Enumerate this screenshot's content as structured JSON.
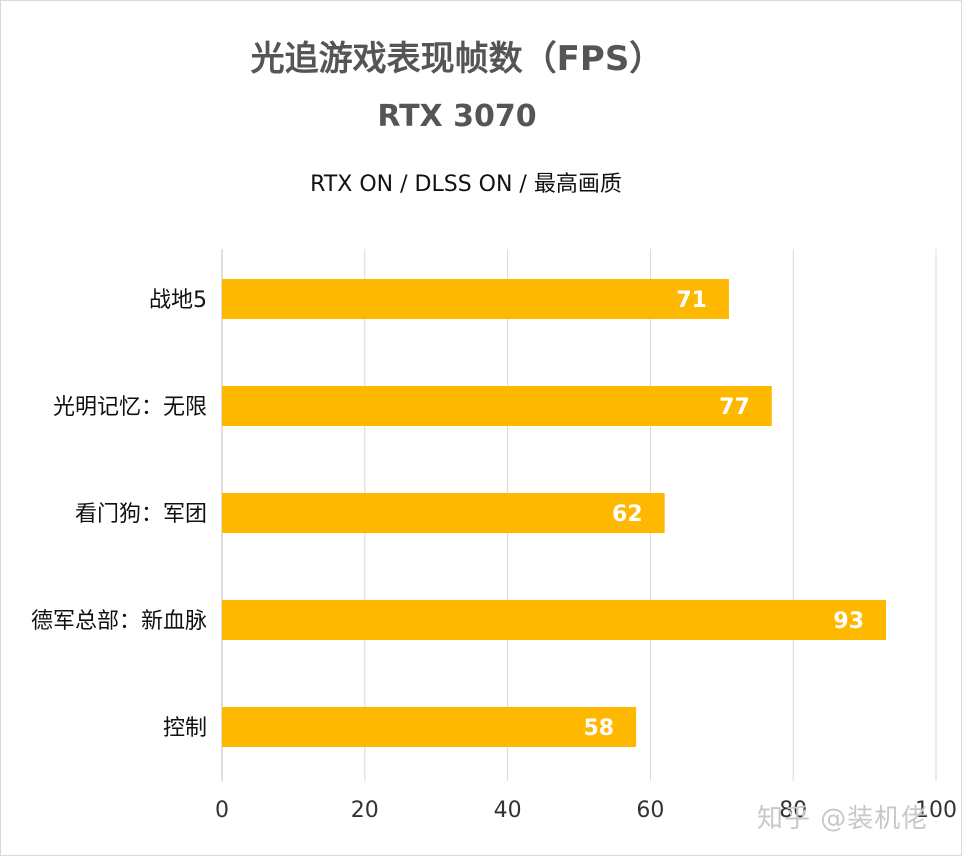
{
  "header": {
    "title": "光追游戏表现帧数（FPS）",
    "subtitle": "RTX 3070",
    "settings": "RTX ON / DLSS ON / 最高画质"
  },
  "watermark": "知乎 @装机佬",
  "chart_data": {
    "type": "bar",
    "orientation": "horizontal",
    "title": "光追游戏表现帧数（FPS）",
    "subtitle": "RTX 3070",
    "categories": [
      "战地5",
      "光明记忆：无限",
      "看门狗：军团",
      "德军总部：新血脉",
      "控制"
    ],
    "values": [
      71,
      77,
      62,
      93,
      58
    ],
    "xlim": [
      0,
      100
    ],
    "xticks": [
      0,
      20,
      40,
      60,
      80,
      100
    ],
    "grid": true,
    "data_labels": true,
    "legend": "none",
    "bar_color": "#FFB800"
  }
}
